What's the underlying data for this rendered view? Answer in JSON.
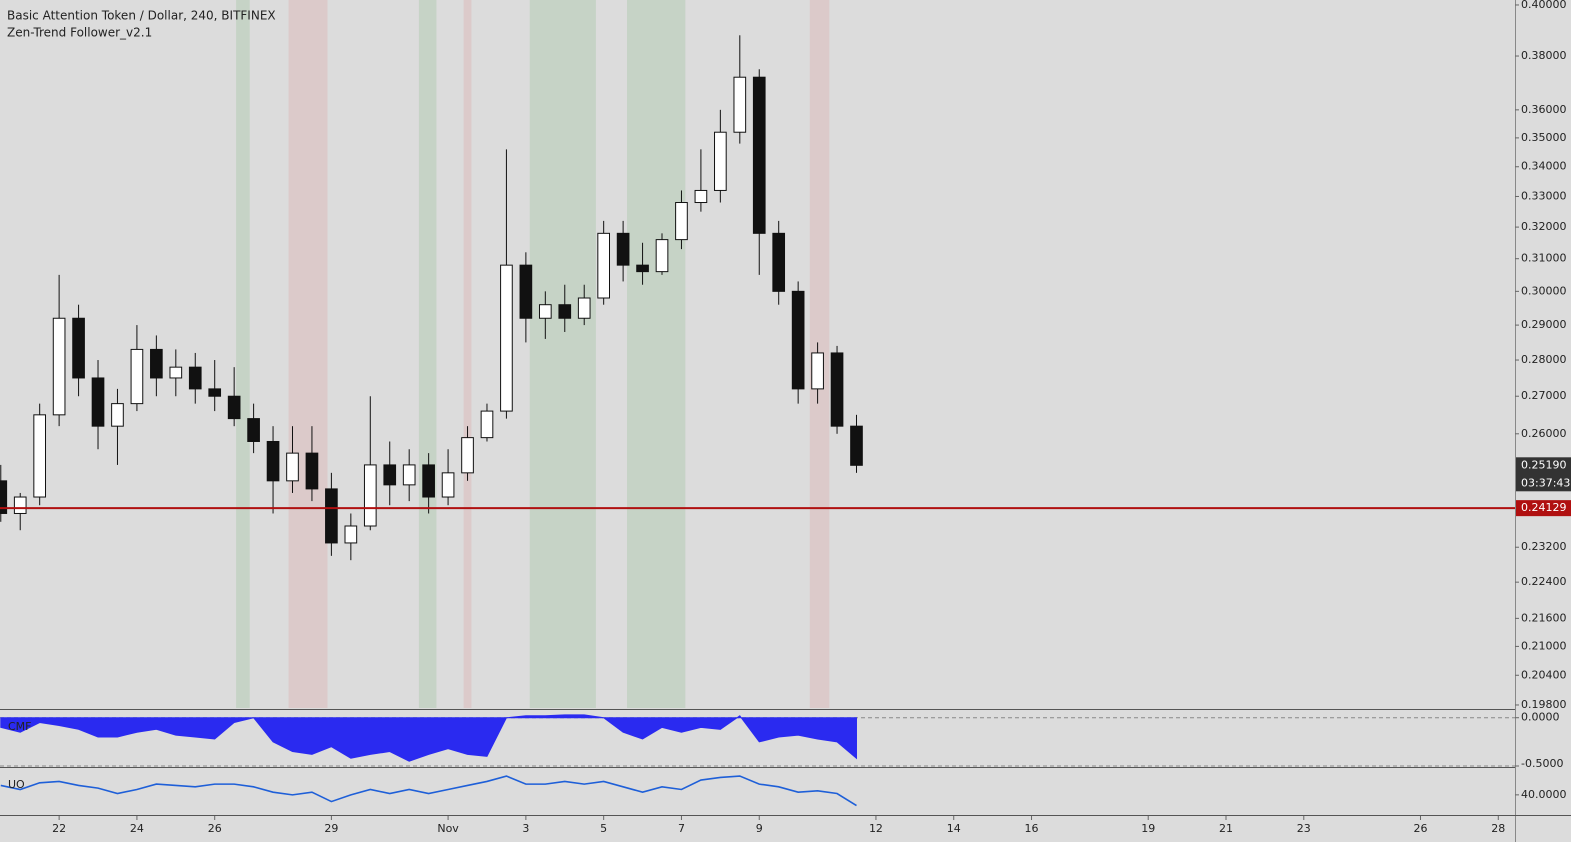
{
  "header": {
    "title": "Basic Attention Token / Dollar, 240, BITFINEX",
    "indicator": "Zen-Trend Follower_v2.1"
  },
  "chart_data": [
    {
      "type": "candlestick",
      "x": [
        20.5,
        21,
        21.5,
        22,
        22.5,
        23,
        23.5,
        24,
        24.5,
        25,
        25.5,
        26,
        26.5,
        27,
        27.5,
        28,
        28.5,
        29,
        29.5,
        30,
        30.5,
        31,
        31.5,
        32,
        32.5,
        33,
        33.5,
        34,
        34.5,
        35,
        35.5,
        36,
        36.5,
        37,
        37.5,
        38,
        38.5,
        39,
        39.5,
        40,
        40.5,
        41,
        41.5,
        42,
        42.5
      ],
      "open": [
        0.248,
        0.24,
        0.244,
        0.265,
        0.292,
        0.275,
        0.262,
        0.268,
        0.283,
        0.275,
        0.278,
        0.272,
        0.27,
        0.264,
        0.258,
        0.248,
        0.255,
        0.246,
        0.233,
        0.237,
        0.252,
        0.247,
        0.252,
        0.244,
        0.25,
        0.259,
        0.266,
        0.308,
        0.292,
        0.296,
        0.292,
        0.298,
        0.318,
        0.308,
        0.306,
        0.316,
        0.328,
        0.332,
        0.352,
        0.372,
        0.318,
        0.3,
        0.272,
        0.282,
        0.262
      ],
      "high": [
        0.252,
        0.245,
        0.268,
        0.305,
        0.296,
        0.28,
        0.272,
        0.29,
        0.287,
        0.283,
        0.282,
        0.28,
        0.278,
        0.268,
        0.262,
        0.262,
        0.262,
        0.25,
        0.24,
        0.27,
        0.258,
        0.256,
        0.255,
        0.256,
        0.262,
        0.268,
        0.346,
        0.312,
        0.3,
        0.302,
        0.302,
        0.322,
        0.322,
        0.315,
        0.318,
        0.332,
        0.346,
        0.36,
        0.388,
        0.375,
        0.322,
        0.303,
        0.285,
        0.284,
        0.265
      ],
      "low": [
        0.238,
        0.236,
        0.242,
        0.262,
        0.27,
        0.256,
        0.252,
        0.266,
        0.27,
        0.27,
        0.268,
        0.266,
        0.262,
        0.255,
        0.24,
        0.245,
        0.243,
        0.23,
        0.229,
        0.236,
        0.242,
        0.243,
        0.24,
        0.242,
        0.248,
        0.258,
        0.264,
        0.285,
        0.286,
        0.288,
        0.29,
        0.296,
        0.303,
        0.302,
        0.305,
        0.313,
        0.325,
        0.328,
        0.348,
        0.305,
        0.296,
        0.268,
        0.268,
        0.26,
        0.25
      ],
      "close": [
        0.24,
        0.244,
        0.265,
        0.292,
        0.275,
        0.262,
        0.268,
        0.283,
        0.275,
        0.278,
        0.272,
        0.27,
        0.264,
        0.258,
        0.248,
        0.255,
        0.246,
        0.233,
        0.237,
        0.252,
        0.247,
        0.252,
        0.244,
        0.25,
        0.259,
        0.266,
        0.308,
        0.292,
        0.296,
        0.292,
        0.298,
        0.318,
        0.308,
        0.306,
        0.316,
        0.328,
        0.332,
        0.352,
        0.372,
        0.318,
        0.3,
        0.272,
        0.282,
        0.262,
        0.2519
      ],
      "xlim": [
        20.48,
        59.43
      ],
      "xticks": [
        22,
        24,
        26,
        29,
        {
          "value": 32,
          "label": "Nov"
        },
        {
          "value": 34,
          "label": "3"
        },
        {
          "value": 36,
          "label": "5"
        },
        {
          "value": 38,
          "label": "7"
        },
        {
          "value": 40,
          "label": "9"
        },
        {
          "value": 43,
          "label": "12"
        },
        {
          "value": 45,
          "label": "14"
        },
        {
          "value": 47,
          "label": "16"
        },
        {
          "value": 50,
          "label": "19"
        },
        {
          "value": 52,
          "label": "21"
        },
        {
          "value": 54,
          "label": "23"
        },
        {
          "value": 57,
          "label": "26"
        },
        {
          "value": 59,
          "label": "28"
        }
      ],
      "ylim": [
        0.1974,
        0.402
      ],
      "log_scale": true,
      "yticks": [
        {
          "value": 0.4,
          "label": "0.40000"
        },
        {
          "value": 0.38,
          "label": "0.38000"
        },
        {
          "value": 0.36,
          "label": "0.36000"
        },
        {
          "value": 0.35,
          "label": "0.35000"
        },
        {
          "value": 0.34,
          "label": "0.34000"
        },
        {
          "value": 0.33,
          "label": "0.33000"
        },
        {
          "value": 0.32,
          "label": "0.32000"
        },
        {
          "value": 0.31,
          "label": "0.31000"
        },
        {
          "value": 0.3,
          "label": "0.30000"
        },
        {
          "value": 0.29,
          "label": "0.29000"
        },
        {
          "value": 0.28,
          "label": "0.28000"
        },
        {
          "value": 0.27,
          "label": "0.27000"
        },
        {
          "value": 0.26,
          "label": "0.26000"
        },
        {
          "value": 0.232,
          "label": "0.23200"
        },
        {
          "value": 0.224,
          "label": "0.22400"
        },
        {
          "value": 0.216,
          "label": "0.21600"
        },
        {
          "value": 0.21,
          "label": "0.21000"
        },
        {
          "value": 0.204,
          "label": "0.20400"
        },
        {
          "value": 0.198,
          "label": "0.19800"
        }
      ],
      "zones": [
        {
          "start": 26.55,
          "end": 26.9,
          "color": "rgba(90,170,90,0.16)"
        },
        {
          "start": 27.9,
          "end": 28.9,
          "color": "rgba(220,90,90,0.14)"
        },
        {
          "start": 31.25,
          "end": 31.7,
          "color": "rgba(90,170,90,0.16)"
        },
        {
          "start": 32.4,
          "end": 32.6,
          "color": "rgba(220,90,90,0.14)"
        },
        {
          "start": 34.1,
          "end": 35.8,
          "color": "rgba(90,170,90,0.16)"
        },
        {
          "start": 36.6,
          "end": 38.1,
          "color": "rgba(90,170,90,0.16)"
        },
        {
          "start": 41.3,
          "end": 41.8,
          "color": "rgba(220,90,90,0.14)"
        }
      ],
      "price_line": {
        "value": 0.24129,
        "label": "0.24129",
        "color": "#b01010"
      },
      "last_price": {
        "value": 0.2519,
        "label": "0.25190"
      },
      "countdown": "03:37:43"
    },
    {
      "type": "area",
      "title": "CMF",
      "x": [
        20.5,
        21,
        21.5,
        22,
        22.5,
        23,
        23.5,
        24,
        24.5,
        25,
        25.5,
        26,
        26.5,
        27,
        27.5,
        28,
        28.5,
        29,
        29.5,
        30,
        30.5,
        31,
        31.5,
        32,
        32.5,
        33,
        33.5,
        34,
        34.5,
        35,
        35.5,
        36,
        36.5,
        37,
        37.5,
        38,
        38.5,
        39,
        39.5,
        40,
        40.5,
        41,
        41.5,
        42,
        42.5
      ],
      "values": [
        -0.1,
        -0.15,
        -0.05,
        -0.08,
        -0.12,
        -0.2,
        -0.2,
        -0.15,
        -0.12,
        -0.18,
        -0.2,
        -0.22,
        -0.05,
        0.0,
        -0.25,
        -0.35,
        -0.38,
        -0.3,
        -0.42,
        -0.38,
        -0.35,
        -0.45,
        -0.38,
        -0.32,
        -0.38,
        -0.4,
        0.0,
        0.02,
        0.02,
        0.03,
        0.03,
        0.0,
        -0.15,
        -0.22,
        -0.1,
        -0.15,
        -0.1,
        -0.12,
        0.02,
        -0.25,
        -0.2,
        -0.18,
        -0.22,
        -0.25,
        -0.42
      ],
      "color": "#2a2af0",
      "xlim": [
        20.48,
        59.43
      ],
      "ylim": [
        -0.5,
        0.08
      ],
      "yticks": [
        {
          "value": 0,
          "label": "0.0000"
        },
        {
          "value": -0.5,
          "label": "-0.5000"
        }
      ],
      "grid": true
    },
    {
      "type": "line",
      "title": "UO",
      "x": [
        20.5,
        21,
        21.5,
        22,
        22.5,
        23,
        23.5,
        24,
        24.5,
        25,
        25.5,
        26,
        26.5,
        27,
        27.5,
        28,
        28.5,
        29,
        29.5,
        30,
        30.5,
        31,
        31.5,
        32,
        32.5,
        33,
        33.5,
        34,
        34.5,
        35,
        35.5,
        36,
        36.5,
        37,
        37.5,
        38,
        38.5,
        39,
        39.5,
        40,
        40.5,
        41,
        41.5,
        42,
        42.5
      ],
      "values": [
        47,
        44,
        49,
        50,
        47,
        45,
        41,
        44,
        48,
        47,
        46,
        48,
        48,
        46,
        42,
        40,
        42,
        35,
        40,
        44,
        41,
        44,
        41,
        44,
        47,
        50,
        54,
        48,
        48,
        50,
        48,
        50,
        46,
        42,
        46,
        44,
        51,
        53,
        54,
        48,
        46,
        42,
        43,
        41,
        32
      ],
      "color": "#1e5fd8",
      "xlim": [
        20.48,
        59.43
      ],
      "ylim": [
        25,
        60
      ],
      "yticks": [
        {
          "value": 40,
          "label": "40.0000"
        }
      ],
      "grid": false
    }
  ]
}
